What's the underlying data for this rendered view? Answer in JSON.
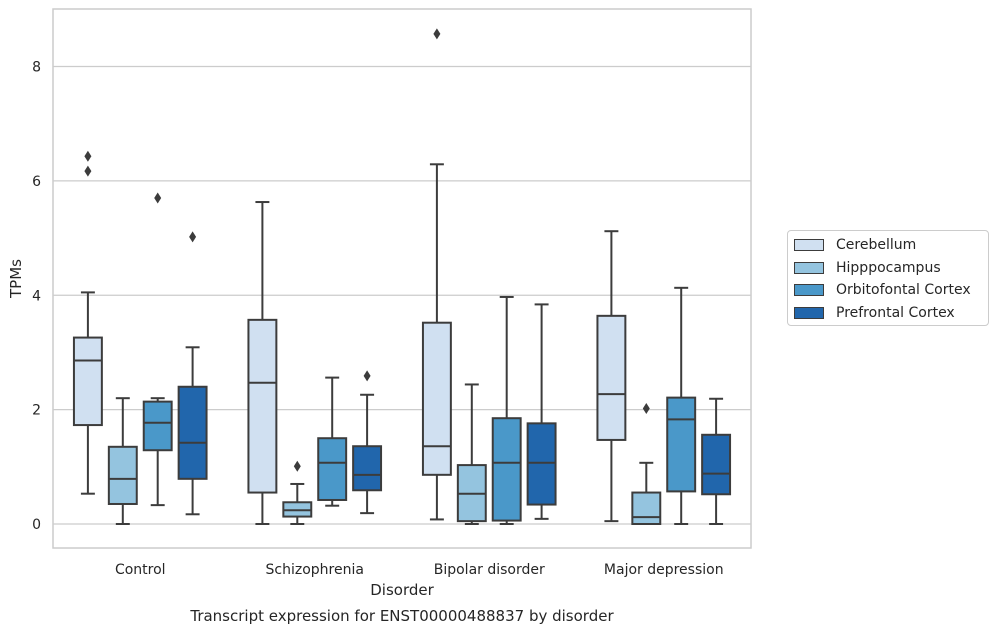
{
  "chart_data": {
    "type": "box",
    "title": "Transcript expression for ENST00000488837 by disorder",
    "xlabel": "Disorder",
    "ylabel": "TPMs",
    "ylim": [
      -0.4,
      9.1
    ],
    "yticks": [
      0,
      2,
      4,
      6,
      8
    ],
    "grid": "horizontal",
    "legend_position": "right",
    "categories": [
      "Control",
      "Schizophrenia",
      "Bipolar disorder",
      "Major depression"
    ],
    "series": [
      {
        "name": "Cerebellum",
        "color": "#d0e0f1",
        "boxes": [
          {
            "whislo": 0.53,
            "q1": 1.73,
            "med": 2.86,
            "q3": 3.26,
            "whishi": 4.05,
            "fliers": [
              6.17,
              6.43
            ]
          },
          {
            "whislo": 0.0,
            "q1": 0.55,
            "med": 2.47,
            "q3": 3.57,
            "whishi": 5.63,
            "fliers": []
          },
          {
            "whislo": 0.08,
            "q1": 0.86,
            "med": 1.36,
            "q3": 3.52,
            "whishi": 6.29,
            "fliers": [
              8.57
            ]
          },
          {
            "whislo": 0.05,
            "q1": 1.47,
            "med": 2.27,
            "q3": 3.64,
            "whishi": 5.12,
            "fliers": []
          }
        ]
      },
      {
        "name": "Hipppocampus",
        "color": "#94c4df",
        "boxes": [
          {
            "whislo": 0.0,
            "q1": 0.35,
            "med": 0.79,
            "q3": 1.35,
            "whishi": 2.2,
            "fliers": []
          },
          {
            "whislo": 0.0,
            "q1": 0.13,
            "med": 0.24,
            "q3": 0.38,
            "whishi": 0.7,
            "fliers": [
              1.01
            ]
          },
          {
            "whislo": 0.0,
            "q1": 0.05,
            "med": 0.53,
            "q3": 1.03,
            "whishi": 2.44,
            "fliers": []
          },
          {
            "whislo": 0.0,
            "q1": 0.0,
            "med": 0.12,
            "q3": 0.55,
            "whishi": 1.07,
            "fliers": [
              2.02
            ]
          }
        ]
      },
      {
        "name": "Orbitofontal Cortex",
        "color": "#4a98c9",
        "boxes": [
          {
            "whislo": 0.33,
            "q1": 1.29,
            "med": 1.77,
            "q3": 2.14,
            "whishi": 2.2,
            "fliers": [
              5.7
            ]
          },
          {
            "whislo": 0.32,
            "q1": 0.42,
            "med": 1.07,
            "q3": 1.5,
            "whishi": 2.56,
            "fliers": []
          },
          {
            "whislo": 0.0,
            "q1": 0.06,
            "med": 1.07,
            "q3": 1.85,
            "whishi": 3.97,
            "fliers": []
          },
          {
            "whislo": 0.0,
            "q1": 0.57,
            "med": 1.83,
            "q3": 2.21,
            "whishi": 4.13,
            "fliers": []
          }
        ]
      },
      {
        "name": "Prefrontal Cortex",
        "color": "#2166ac",
        "boxes": [
          {
            "whislo": 0.17,
            "q1": 0.79,
            "med": 1.42,
            "q3": 2.4,
            "whishi": 3.09,
            "fliers": [
              5.02
            ]
          },
          {
            "whislo": 0.19,
            "q1": 0.59,
            "med": 0.86,
            "q3": 1.36,
            "whishi": 2.26,
            "fliers": [
              2.59
            ]
          },
          {
            "whislo": 0.09,
            "q1": 0.34,
            "med": 1.07,
            "q3": 1.76,
            "whishi": 3.84,
            "fliers": []
          },
          {
            "whislo": 0.0,
            "q1": 0.52,
            "med": 0.88,
            "q3": 1.56,
            "whishi": 2.19,
            "fliers": []
          }
        ]
      }
    ]
  }
}
